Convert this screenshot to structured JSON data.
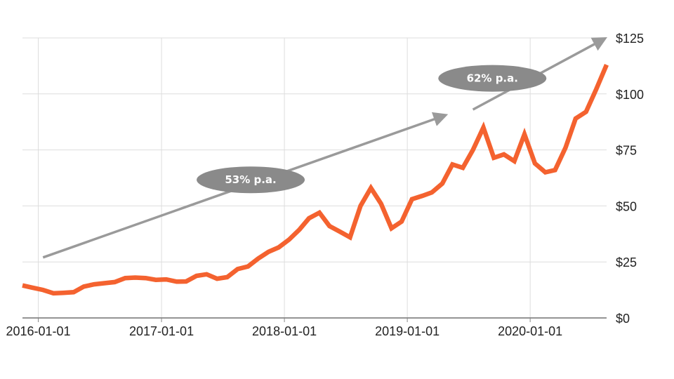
{
  "chart_data": {
    "type": "line",
    "title": "",
    "xlabel": "",
    "ylabel": "",
    "ylim": [
      0,
      125
    ],
    "y_ticks": [
      "$0",
      "$25",
      "$50",
      "$75",
      "$100",
      "$125"
    ],
    "y_tick_values": [
      0,
      25,
      50,
      75,
      100,
      125
    ],
    "x_ticks": [
      "2016-01-01",
      "2017-01-01",
      "2018-01-01",
      "2019-01-01",
      "2020-01-01"
    ],
    "x_range": [
      "2015-11-15",
      "2020-08-15"
    ],
    "grid": true,
    "y_axis_side": "right",
    "series": [
      {
        "color": "#f4622f",
        "x": [
          "2015-11-15",
          "2015-12-15",
          "2016-01-15",
          "2016-02-15",
          "2016-03-15",
          "2016-04-15",
          "2016-05-15",
          "2016-06-15",
          "2016-07-15",
          "2016-08-15",
          "2016-09-15",
          "2016-10-15",
          "2016-11-15",
          "2016-12-15",
          "2017-01-15",
          "2017-02-15",
          "2017-03-15",
          "2017-04-15",
          "2017-05-15",
          "2017-06-15",
          "2017-07-15",
          "2017-08-15",
          "2017-09-15",
          "2017-10-15",
          "2017-11-15",
          "2017-12-15",
          "2018-01-15",
          "2018-02-15",
          "2018-03-15",
          "2018-04-15",
          "2018-05-15",
          "2018-06-15",
          "2018-07-15",
          "2018-08-15",
          "2018-09-15",
          "2018-10-15",
          "2018-11-15",
          "2018-12-15",
          "2019-01-15",
          "2019-02-15",
          "2019-03-15",
          "2019-04-15",
          "2019-05-15",
          "2019-06-15",
          "2019-07-15",
          "2019-08-15",
          "2019-09-15",
          "2019-10-15",
          "2019-11-15",
          "2019-12-15",
          "2020-01-15",
          "2020-02-15",
          "2020-03-15",
          "2020-04-15",
          "2020-05-15",
          "2020-06-15",
          "2020-07-15",
          "2020-08-15"
        ],
        "values": [
          14.5,
          13.5,
          12.5,
          11,
          11.2,
          11.5,
          14,
          15,
          15.5,
          16,
          17.8,
          18,
          17.8,
          17,
          17.2,
          16.2,
          16.3,
          18.8,
          19.5,
          17.5,
          18.2,
          21.8,
          23,
          26.5,
          29.5,
          31.5,
          35,
          39.5,
          44.5,
          47,
          41,
          38.5,
          36,
          50,
          58,
          51,
          40,
          43,
          53,
          54.5,
          56,
          60,
          68.5,
          67,
          75,
          85,
          71.5,
          73,
          70,
          82,
          69,
          65,
          66,
          76,
          89,
          92,
          102,
          113
        ]
      }
    ],
    "annotations": [
      {
        "label": "53% p.a.",
        "arrow_from": [
          "2016-01-15",
          27
        ],
        "arrow_to": [
          "2019-04-15",
          90
        ]
      },
      {
        "label": "62% p.a.",
        "arrow_from": [
          "2019-07-15",
          93
        ],
        "arrow_to": [
          "2020-08-01",
          124
        ]
      }
    ]
  }
}
